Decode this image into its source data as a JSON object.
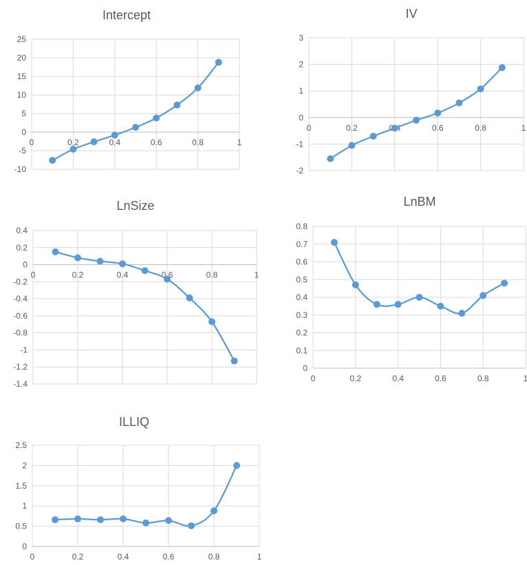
{
  "colors": {
    "series": "#5B9BD5",
    "grid": "#D9D9D9",
    "axis": "#BFBFBF",
    "text": "#595959"
  },
  "chart_data": [
    {
      "type": "line",
      "title": "Intercept",
      "xlabel": "",
      "ylabel": "",
      "smooth": true,
      "grid": true,
      "xlim": [
        0,
        1
      ],
      "ylim": [
        -10,
        25
      ],
      "xticks": [
        0,
        0.2,
        0.4,
        0.6,
        0.8,
        1
      ],
      "yticks": [
        -10,
        -5,
        0,
        5,
        10,
        15,
        20,
        25
      ],
      "x": [
        0.1,
        0.2,
        0.3,
        0.4,
        0.5,
        0.6,
        0.7,
        0.8,
        0.9
      ],
      "y": [
        -7.6,
        -4.6,
        -2.6,
        -0.8,
        1.3,
        3.8,
        7.3,
        11.9,
        18.8
      ]
    },
    {
      "type": "line",
      "title": "IV",
      "xlabel": "",
      "ylabel": "",
      "smooth": true,
      "grid": true,
      "xlim": [
        0,
        1
      ],
      "ylim": [
        -2,
        3
      ],
      "xticks": [
        0,
        0.2,
        0.4,
        0.6,
        0.8,
        1
      ],
      "yticks": [
        -2,
        -1,
        0,
        1,
        2,
        3
      ],
      "x": [
        0.1,
        0.2,
        0.3,
        0.4,
        0.5,
        0.6,
        0.7,
        0.8,
        0.9
      ],
      "y": [
        -1.55,
        -1.05,
        -0.7,
        -0.4,
        -0.1,
        0.17,
        0.55,
        1.08,
        1.88
      ]
    },
    {
      "type": "line",
      "title": "LnSize",
      "xlabel": "",
      "ylabel": "",
      "smooth": true,
      "grid": true,
      "xlim": [
        0,
        1
      ],
      "ylim": [
        -1.4,
        0.4
      ],
      "xticks": [
        0,
        0.2,
        0.4,
        0.6,
        0.8,
        1
      ],
      "yticks": [
        -1.4,
        -1.2,
        -1,
        -0.8,
        -0.6,
        -0.4,
        -0.2,
        0,
        0.2,
        0.4
      ],
      "x": [
        0.1,
        0.2,
        0.3,
        0.4,
        0.5,
        0.6,
        0.7,
        0.8,
        0.9
      ],
      "y": [
        0.15,
        0.08,
        0.04,
        0.01,
        -0.07,
        -0.17,
        -0.39,
        -0.67,
        -1.13
      ]
    },
    {
      "type": "line",
      "title": "LnBM",
      "xlabel": "",
      "ylabel": "",
      "smooth": true,
      "grid": true,
      "xlim": [
        0,
        1
      ],
      "ylim": [
        0,
        0.8
      ],
      "xticks": [
        0,
        0.2,
        0.4,
        0.6,
        0.8,
        1
      ],
      "yticks": [
        0,
        0.1,
        0.2,
        0.3,
        0.4,
        0.5,
        0.6,
        0.7,
        0.8
      ],
      "x": [
        0.1,
        0.2,
        0.3,
        0.4,
        0.5,
        0.6,
        0.7,
        0.8,
        0.9
      ],
      "y": [
        0.71,
        0.47,
        0.36,
        0.36,
        0.4,
        0.35,
        0.31,
        0.41,
        0.48
      ]
    },
    {
      "type": "line",
      "title": "ILLIQ",
      "xlabel": "",
      "ylabel": "",
      "smooth": true,
      "grid": true,
      "xlim": [
        0,
        1
      ],
      "ylim": [
        0,
        2.5
      ],
      "xticks": [
        0,
        0.2,
        0.4,
        0.6,
        0.8,
        1
      ],
      "yticks": [
        0,
        0.5,
        1,
        1.5,
        2,
        2.5
      ],
      "x": [
        0.1,
        0.2,
        0.3,
        0.4,
        0.5,
        0.6,
        0.7,
        0.8,
        0.9
      ],
      "y": [
        0.66,
        0.68,
        0.66,
        0.68,
        0.58,
        0.64,
        0.51,
        0.88,
        2.0
      ]
    }
  ]
}
